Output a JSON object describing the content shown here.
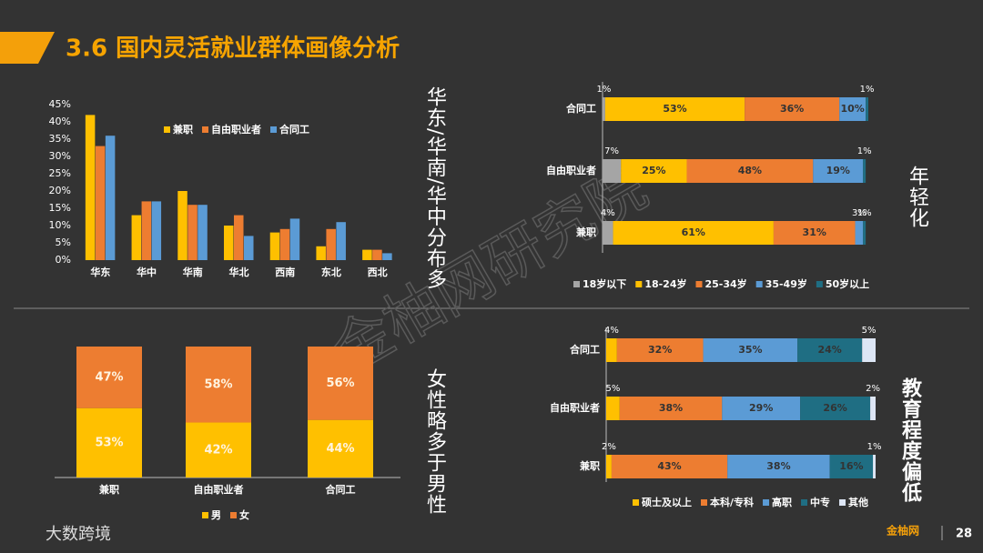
{
  "header": {
    "title": "3.6 国内灵活就业群体画像分析"
  },
  "notes": [
    "华东/华南/华中分布多",
    "年轻化",
    "女性略多于男性",
    "教育程度偏低"
  ],
  "watermark": "金柚网研究院",
  "footer": {
    "brand": "大数跨境",
    "logo": "金柚网",
    "page": "28"
  },
  "chart_data": [
    {
      "type": "bar",
      "categories": [
        "华东",
        "华中",
        "华南",
        "华北",
        "西南",
        "东北",
        "西北"
      ],
      "series": [
        {
          "name": "兼职",
          "color": "#ffc000",
          "values": [
            42,
            13,
            20,
            10,
            8,
            4,
            3
          ]
        },
        {
          "name": "自由职业者",
          "color": "#ed7d31",
          "values": [
            33,
            17,
            16,
            13,
            9,
            9,
            3
          ]
        },
        {
          "name": "合同工",
          "color": "#5b9bd5",
          "values": [
            36,
            17,
            16,
            7,
            12,
            11,
            2
          ]
        }
      ],
      "ylim": [
        0,
        45
      ],
      "yticks": [
        {
          "value": 0,
          "label": "0%"
        },
        {
          "value": 5,
          "label": "5%"
        },
        {
          "value": 10,
          "label": "10%"
        },
        {
          "value": 15,
          "label": "15%"
        },
        {
          "value": 20,
          "label": "20%"
        },
        {
          "value": 25,
          "label": "25%"
        },
        {
          "value": 30,
          "label": "30%"
        },
        {
          "value": 35,
          "label": "35%"
        },
        {
          "value": 40,
          "label": "40%"
        },
        {
          "value": 45,
          "label": "45%"
        }
      ]
    },
    {
      "type": "stacked_barh",
      "categories": [
        "合同工",
        "自由职业者",
        "兼职"
      ],
      "series": [
        {
          "name": "18岁以下",
          "color": "#a5a5a5",
          "values": [
            1,
            7,
            4
          ],
          "value_labels": [
            "1%",
            "7%",
            "4%"
          ]
        },
        {
          "name": "18-24岁",
          "color": "#ffc000",
          "values": [
            53,
            25,
            61
          ],
          "value_labels": [
            "53%",
            "25%",
            "61%"
          ]
        },
        {
          "name": "25-34岁",
          "color": "#ed7d31",
          "values": [
            36,
            48,
            31
          ],
          "value_labels": [
            "36%",
            "48%",
            "31%"
          ]
        },
        {
          "name": "35-49岁",
          "color": "#5b9bd5",
          "values": [
            10,
            19,
            3
          ],
          "value_labels": [
            "10%",
            "19%",
            "3%"
          ]
        },
        {
          "name": "50岁以上",
          "color": "#1f6e83",
          "values": [
            1,
            1,
            1
          ],
          "value_labels": [
            "1%",
            "1%",
            "1%"
          ]
        }
      ]
    },
    {
      "type": "stacked_bar",
      "categories": [
        "兼职",
        "自由职业者",
        "合同工"
      ],
      "series": [
        {
          "name": "男",
          "color": "#ffc000",
          "values": [
            53,
            42,
            44
          ],
          "value_labels": [
            "53%",
            "42%",
            "44%"
          ]
        },
        {
          "name": "女",
          "color": "#ed7d31",
          "values": [
            47,
            58,
            56
          ],
          "value_labels": [
            "47%",
            "58%",
            "56%"
          ]
        }
      ]
    },
    {
      "type": "stacked_barh",
      "categories": [
        "合同工",
        "自由职业者",
        "兼职"
      ],
      "series": [
        {
          "name": "硕士及以上",
          "color": "#ffc000",
          "values": [
            4,
            5,
            2
          ],
          "value_labels": [
            "4%",
            "5%",
            "2%"
          ]
        },
        {
          "name": "本科/专科",
          "color": "#ed7d31",
          "values": [
            32,
            38,
            43
          ],
          "value_labels": [
            "32%",
            "38%",
            "43%"
          ]
        },
        {
          "name": "高职",
          "color": "#5b9bd5",
          "values": [
            35,
            29,
            38
          ],
          "value_labels": [
            "35%",
            "29%",
            "38%"
          ]
        },
        {
          "name": "中专",
          "color": "#1f6e83",
          "values": [
            24,
            26,
            16
          ],
          "value_labels": [
            "24%",
            "26%",
            "16%"
          ]
        },
        {
          "name": "其他",
          "color": "#dde6f5",
          "values": [
            5,
            2,
            1
          ],
          "value_labels": [
            "5%",
            "2%",
            "1%"
          ]
        }
      ]
    }
  ]
}
